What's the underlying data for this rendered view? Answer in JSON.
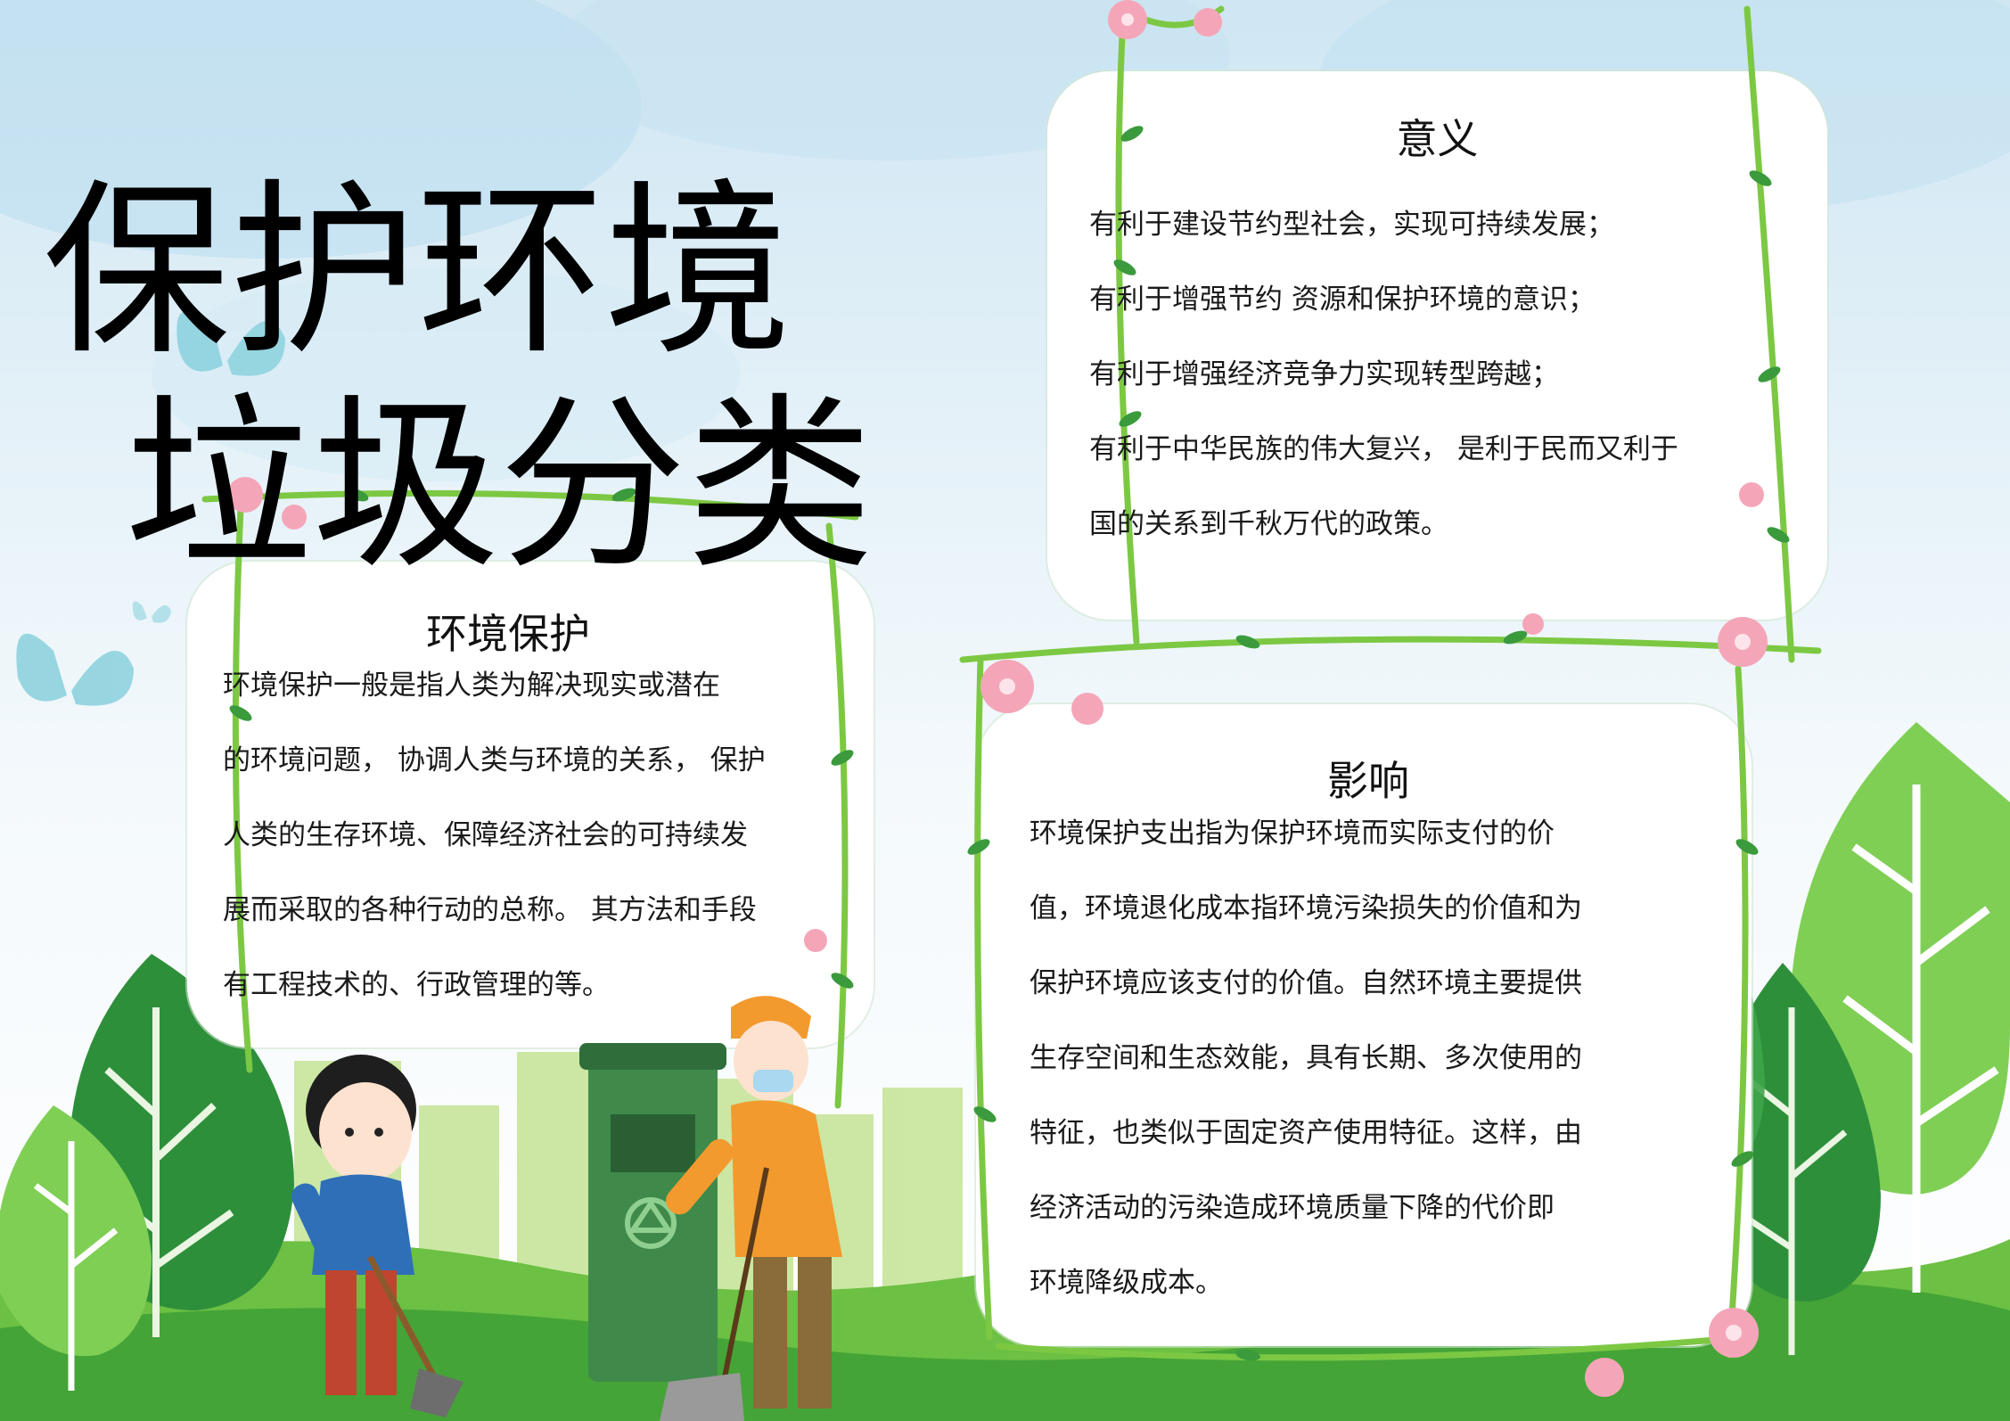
{
  "poster": {
    "title_lines": [
      "保护环境",
      "垃圾分类"
    ]
  },
  "environment": {
    "title": "环境保护",
    "lines": [
      "环境保护一般是指人类为解决现实或潜在",
      "的环境问题，  协调人类与环境的关系，  保护",
      "人类的生存环境、保障经济社会的可持续发",
      "展而采取的各种行动的总称。  其方法和手段",
      "有工程技术的、行政管理的等。"
    ]
  },
  "significance": {
    "title": "意义",
    "lines": [
      "有利于建设节约型社会，实现可持续发展；",
      "有利于增强节约    资源和保护环境的意识；",
      "有利于增强经济竞争力实现转型跨越；",
      "有利于中华民族的伟大复兴，  是利于民而又利于",
      "国的关系到千秋万代的政策。"
    ]
  },
  "impact": {
    "title": "影响",
    "lines": [
      "环境保护支出指为保护环境而实际支付的价",
      "值，环境退化成本指环境污染损失的价值和为",
      "保护环境应该支付的价值。自然环境主要提供",
      "生存空间和生态效能，具有长期、多次使用的",
      "特征，也类似于固定资产使用特征。这样，由",
      "经济活动的污染造成环境质量下降的代价即",
      "环境降级成本。"
    ]
  },
  "colors": {
    "vine": "#7cc843",
    "leaf": "#3a9a3c",
    "flower": "#f4a6b8",
    "tree_dark": "#2e8f3b",
    "tree_light": "#7fcf55",
    "grass": "#5ab43a",
    "butterfly": "#8ed3df"
  },
  "decor": {
    "icons": [
      "butterfly-icon",
      "tree-icon",
      "flower-icon",
      "recycle-icon",
      "child-illustration",
      "worker-illustration",
      "trash-bin-illustration"
    ]
  }
}
